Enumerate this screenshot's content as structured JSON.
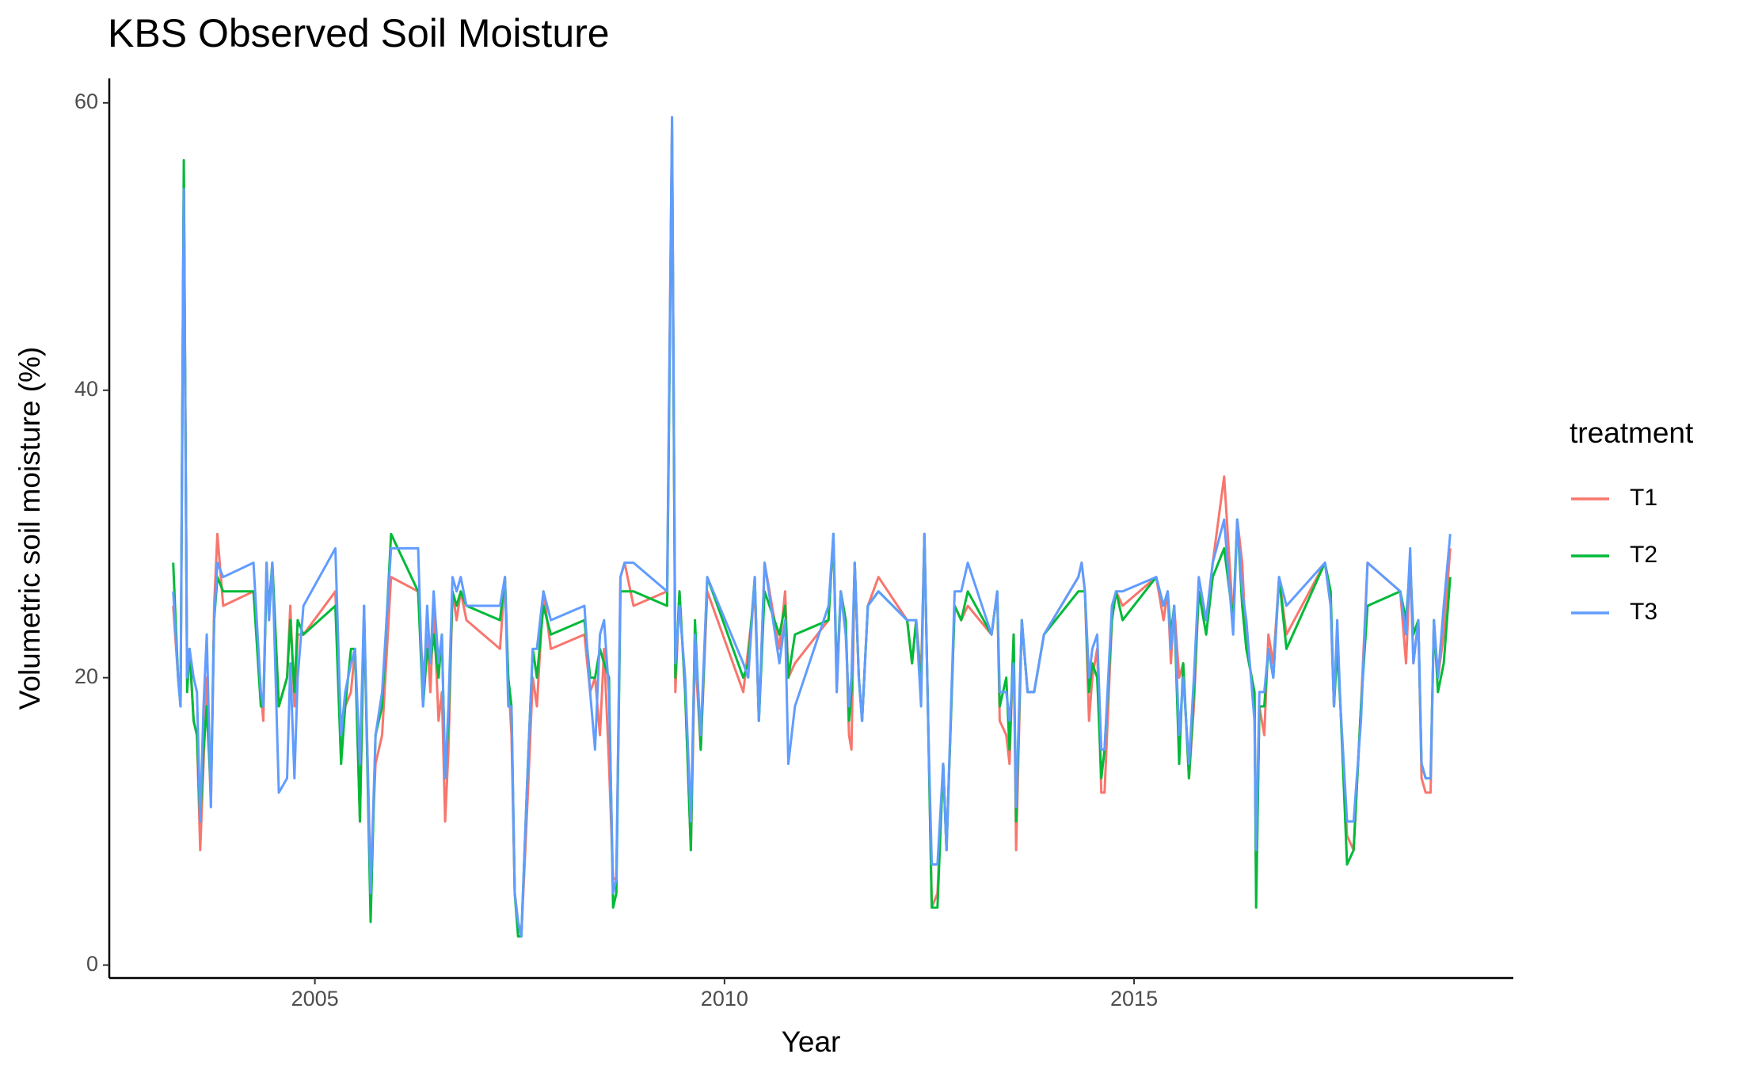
{
  "chart_data": {
    "type": "line",
    "title": "KBS Observed Soil Moisture",
    "x_label": "Year",
    "y_label": "Volumetric soil moisture (%)",
    "legend_title": "treatment",
    "xlim": [
      2002.49,
      2019.63
    ],
    "xticks": [
      2005,
      2010,
      2015
    ],
    "ylim": [
      -0.9,
      61.7
    ],
    "yticks": [
      0,
      20,
      40,
      60
    ],
    "grid": false,
    "legend": "right",
    "x": [
      2003.27,
      2003.33,
      2003.36,
      2003.4,
      2003.44,
      2003.47,
      2003.52,
      2003.56,
      2003.6,
      2003.64,
      2003.68,
      2003.73,
      2003.77,
      2003.81,
      2003.88,
      2004.25,
      2004.34,
      2004.37,
      2004.41,
      2004.44,
      2004.48,
      2004.56,
      2004.66,
      2004.7,
      2004.75,
      2004.79,
      2004.86,
      2005.25,
      2005.32,
      2005.37,
      2005.44,
      2005.49,
      2005.55,
      2005.6,
      2005.68,
      2005.74,
      2005.82,
      2005.93,
      2006.26,
      2006.32,
      2006.37,
      2006.41,
      2006.45,
      2006.51,
      2006.55,
      2006.59,
      2006.63,
      2006.68,
      2006.73,
      2006.78,
      2006.85,
      2007.26,
      2007.32,
      2007.36,
      2007.4,
      2007.44,
      2007.48,
      2007.52,
      2007.6,
      2007.66,
      2007.71,
      2007.79,
      2007.88,
      2008.29,
      2008.36,
      2008.42,
      2008.48,
      2008.53,
      2008.59,
      2008.64,
      2008.68,
      2008.73,
      2008.78,
      2008.89,
      2009.3,
      2009.36,
      2009.4,
      2009.45,
      2009.52,
      2009.59,
      2009.64,
      2009.71,
      2009.79,
      2010.23,
      2010.29,
      2010.37,
      2010.42,
      2010.49,
      2010.67,
      2010.74,
      2010.78,
      2010.86,
      2011.27,
      2011.33,
      2011.37,
      2011.42,
      2011.48,
      2011.52,
      2011.55,
      2011.59,
      2011.64,
      2011.68,
      2011.75,
      2011.88,
      2012.23,
      2012.29,
      2012.34,
      2012.4,
      2012.44,
      2012.49,
      2012.53,
      2012.6,
      2012.67,
      2012.71,
      2012.81,
      2012.89,
      2012.97,
      2013.26,
      2013.33,
      2013.36,
      2013.44,
      2013.48,
      2013.53,
      2013.56,
      2013.63,
      2013.7,
      2013.78,
      2013.9,
      2014.32,
      2014.36,
      2014.4,
      2014.45,
      2014.49,
      2014.55,
      2014.6,
      2014.64,
      2014.73,
      2014.78,
      2014.86,
      2015.27,
      2015.36,
      2015.41,
      2015.45,
      2015.49,
      2015.55,
      2015.6,
      2015.67,
      2015.73,
      2015.79,
      2015.88,
      2015.96,
      2016.1,
      2016.21,
      2016.26,
      2016.32,
      2016.37,
      2016.47,
      2016.49,
      2016.53,
      2016.59,
      2016.64,
      2016.7,
      2016.77,
      2016.86,
      2017.33,
      2017.4,
      2017.44,
      2017.48,
      2017.52,
      2017.6,
      2017.68,
      2017.77,
      2017.85,
      2018.25,
      2018.32,
      2018.37,
      2018.41,
      2018.47,
      2018.51,
      2018.56,
      2018.62,
      2018.66,
      2018.71,
      2018.78,
      2018.86
    ],
    "series": [
      {
        "name": "T1",
        "color": "#F8766D",
        "values": [
          25,
          20,
          18,
          55,
          20,
          22,
          17,
          16,
          8,
          14,
          20,
          11,
          25,
          30,
          25,
          26,
          19,
          17,
          28,
          24,
          28,
          18,
          20,
          25,
          18,
          23,
          23,
          26,
          15,
          18,
          19,
          22,
          10,
          24,
          6,
          14,
          16,
          27,
          26,
          20,
          23,
          19,
          25,
          17,
          19,
          10,
          15,
          26,
          24,
          26,
          24,
          22,
          27,
          20,
          16,
          5,
          3,
          2,
          12,
          20,
          18,
          26,
          22,
          23,
          19,
          20,
          16,
          22,
          14,
          6,
          6,
          27,
          28,
          25,
          26,
          59,
          19,
          26,
          19,
          8,
          22,
          15,
          26,
          19,
          22,
          26,
          17,
          28,
          22,
          26,
          20,
          21,
          24,
          30,
          19,
          26,
          24,
          16,
          15,
          28,
          20,
          17,
          25,
          27,
          24,
          21,
          24,
          20,
          30,
          16,
          4,
          5,
          14,
          8,
          25,
          24,
          25,
          23,
          26,
          17,
          16,
          14,
          23,
          8,
          24,
          19,
          19,
          23,
          27,
          28,
          26,
          17,
          20,
          22,
          12,
          12,
          24,
          26,
          25,
          27,
          24,
          26,
          21,
          25,
          20,
          21,
          13,
          18,
          26,
          24,
          28,
          34,
          24,
          31,
          28,
          22,
          19,
          5,
          18,
          16,
          23,
          21,
          27,
          23,
          28,
          25,
          18,
          23,
          18,
          9,
          8,
          18,
          28,
          26,
          21,
          28,
          21,
          24,
          13,
          12,
          12,
          24,
          20,
          23,
          29
        ]
      },
      {
        "name": "T2",
        "color": "#00BA38",
        "values": [
          28,
          20,
          18,
          56,
          19,
          22,
          17,
          16,
          10,
          15,
          18,
          12,
          24,
          27,
          26,
          26,
          18,
          18,
          27,
          25,
          28,
          18,
          20,
          24,
          19,
          24,
          23,
          25,
          14,
          18,
          22,
          22,
          10,
          25,
          3,
          16,
          18,
          30,
          26,
          18,
          22,
          21,
          23,
          20,
          23,
          13,
          17,
          26,
          25,
          26,
          25,
          24,
          27,
          20,
          18,
          5,
          2,
          2,
          14,
          22,
          20,
          25,
          23,
          24,
          20,
          20,
          22,
          21,
          20,
          4,
          5,
          26,
          26,
          26,
          25,
          58,
          20,
          26,
          19,
          8,
          24,
          15,
          27,
          20,
          21,
          27,
          17,
          26,
          23,
          25,
          20,
          23,
          24,
          30,
          20,
          26,
          24,
          17,
          19,
          28,
          20,
          17,
          25,
          26,
          24,
          21,
          24,
          19,
          30,
          16,
          4,
          4,
          14,
          8,
          25,
          24,
          26,
          23,
          26,
          18,
          20,
          15,
          23,
          10,
          24,
          19,
          19,
          23,
          26,
          26,
          26,
          19,
          21,
          20,
          13,
          15,
          24,
          26,
          24,
          27,
          25,
          26,
          23,
          25,
          14,
          21,
          13,
          19,
          26,
          23,
          27,
          29,
          24,
          31,
          25,
          22,
          19,
          4,
          18,
          18,
          22,
          20,
          27,
          22,
          28,
          26,
          18,
          22,
          18,
          7,
          8,
          18,
          25,
          26,
          24,
          28,
          23,
          24,
          14,
          13,
          13,
          24,
          19,
          21,
          27
        ]
      },
      {
        "name": "T3",
        "color": "#619CFF",
        "values": [
          26,
          20,
          18,
          54,
          20,
          22,
          20,
          19,
          10,
          18,
          23,
          11,
          24,
          28,
          27,
          28,
          19,
          18,
          28,
          24,
          28,
          12,
          13,
          21,
          13,
          20,
          25,
          29,
          16,
          19,
          21,
          22,
          14,
          25,
          5,
          16,
          19,
          29,
          29,
          18,
          25,
          21,
          26,
          21,
          23,
          13,
          18,
          27,
          26,
          27,
          25,
          25,
          27,
          18,
          18,
          5,
          3,
          2,
          14,
          22,
          22,
          26,
          24,
          25,
          19,
          15,
          23,
          24,
          19,
          5,
          6,
          27,
          28,
          28,
          26,
          59,
          21,
          25,
          20,
          10,
          23,
          16,
          27,
          21,
          20,
          27,
          17,
          28,
          21,
          24,
          14,
          18,
          25,
          30,
          19,
          26,
          23,
          18,
          20,
          28,
          20,
          17,
          25,
          26,
          24,
          24,
          24,
          18,
          30,
          16,
          7,
          7,
          14,
          8,
          26,
          26,
          28,
          23,
          26,
          19,
          19,
          17,
          21,
          11,
          24,
          19,
          19,
          23,
          27,
          28,
          26,
          20,
          22,
          23,
          15,
          15,
          25,
          26,
          26,
          27,
          25,
          26,
          22,
          25,
          16,
          20,
          14,
          20,
          27,
          24,
          28,
          31,
          23,
          31,
          26,
          24,
          17,
          8,
          19,
          19,
          22,
          20,
          27,
          25,
          28,
          25,
          18,
          24,
          18,
          10,
          10,
          17,
          28,
          26,
          23,
          29,
          21,
          24,
          14,
          13,
          13,
          24,
          20,
          25,
          30
        ]
      }
    ]
  }
}
